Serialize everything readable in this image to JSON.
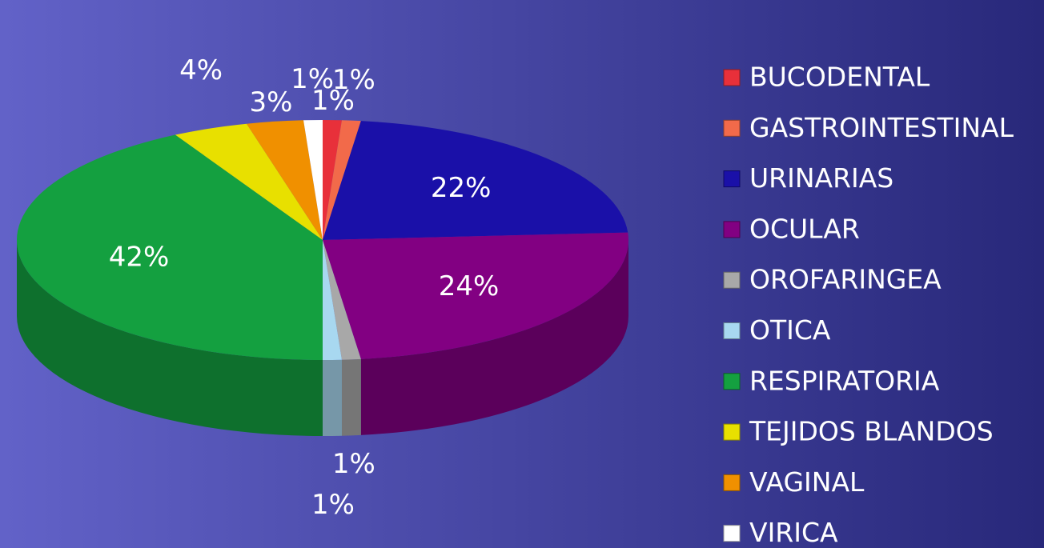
{
  "chart_data": {
    "type": "pie",
    "categories": [
      "BUCODENTAL",
      "GASTROINTESTINAL",
      "URINARIAS",
      "OCULAR",
      "OROFARINGEA",
      "OTICA",
      "RESPIRATORIA",
      "TEJIDOS BLANDOS",
      "VAGINAL",
      "VIRICA"
    ],
    "values": [
      1,
      1,
      22,
      24,
      1,
      1,
      42,
      4,
      3,
      1
    ],
    "value_labels": [
      "1%",
      "1%",
      "22%",
      "24%",
      "1%",
      "1%",
      "42%",
      "4%",
      "3%",
      "1%"
    ],
    "colors": [
      "#e8303a",
      "#f26a4a",
      "#1a10a8",
      "#820082",
      "#a8a8a8",
      "#a8d8f0",
      "#14a040",
      "#e8e000",
      "#f09000",
      "#ffffff"
    ],
    "legend": "right"
  }
}
